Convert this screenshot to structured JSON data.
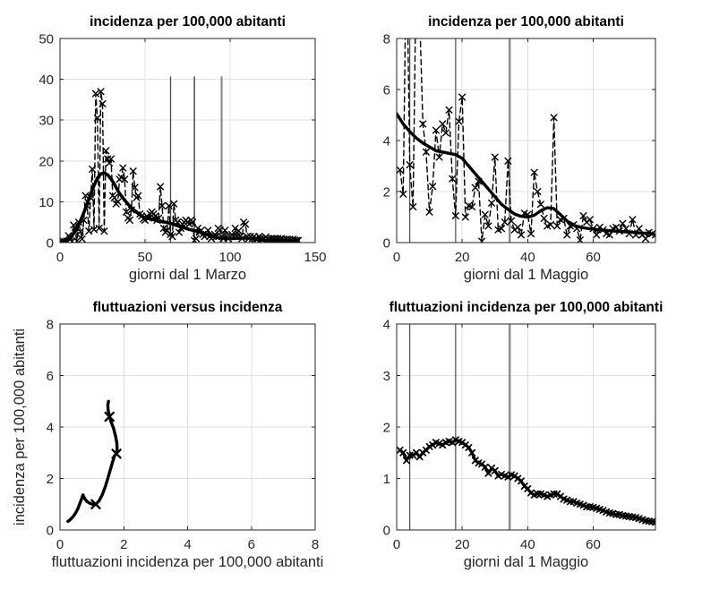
{
  "figure": {
    "background": "#ffffff",
    "description": "2x2 grid of grayscale epidemic-incidence plots, MATLAB style"
  },
  "colors": {
    "line": "#000000",
    "grid": "#e0e0e0",
    "axis": "#262626",
    "tick_label": "#262626",
    "background": "#ffffff"
  },
  "chart_data": [
    {
      "position": "top-left",
      "type": "line",
      "title": "incidenza per 100,000 abitanti",
      "xlabel": "giorni dal 1 Marzo",
      "ylabel": "",
      "xlim": [
        0,
        150
      ],
      "ylim": [
        0,
        50
      ],
      "xticks": [
        0,
        50,
        100,
        150
      ],
      "yticks": [
        0,
        10,
        20,
        30,
        40,
        50
      ],
      "grid": true,
      "event_lines": [
        {
          "x": 65,
          "y_top": 40.7,
          "width": 1.3,
          "color": "#4d4d4d"
        },
        {
          "x": 79,
          "y_top": 40.7,
          "width": 1.5,
          "color": "#4d4d4d"
        },
        {
          "x": 95,
          "y_top": 40.7,
          "width": 2.2,
          "color": "#8c8c8c"
        }
      ],
      "series": [
        {
          "name": "daily incidence (data)",
          "line": "dashed",
          "line_width": 1.4,
          "marker": "x",
          "marker_size": 3.3,
          "marker_width": 1.4,
          "x_range": [
            1,
            140,
            1
          ],
          "y": [
            0.2,
            0.3,
            0.2,
            0.4,
            1.7,
            0.8,
            0.3,
            4.3,
            2.4,
            0.4,
            5.0,
            2.7,
            0.9,
            5.5,
            11.5,
            9.0,
            2.8,
            11.0,
            18.0,
            3.2,
            36.5,
            30.5,
            3.5,
            37.0,
            34.0,
            2.8,
            22.5,
            20.5,
            19.5,
            20.5,
            11.5,
            11.0,
            9.5,
            10.0,
            15.5,
            16.0,
            18.3,
            15.5,
            7.5,
            6.0,
            5.5,
            8.0,
            17.5,
            13.5,
            11.0,
            11.5,
            7.0,
            6.5,
            5.8,
            5.5,
            6.5,
            6.0,
            7.0,
            7.5,
            7.0,
            6.5,
            5.5,
            6.0,
            13.7,
            9.0,
            3.5,
            2.5,
            3.0,
            9.0,
            2.0,
            1.5,
            9.5,
            5.5,
            5.0,
            2.5,
            3.5,
            4.5,
            5.0,
            5.5,
            5.0,
            4.5,
            5.5,
            5.0,
            0.5,
            1.0,
            3.5,
            2.5,
            3.0,
            2.0,
            1.5,
            2.0,
            3.0,
            1.5,
            1.0,
            1.5,
            2.0,
            1.5,
            3.5,
            3.1,
            1.5,
            1.0,
            3.0,
            1.5,
            1.0,
            1.5,
            2.0,
            1.5,
            3.5,
            1.5,
            2.9,
            1.5,
            1.0,
            5.0,
            4.5,
            1.5,
            1.0,
            1.5,
            1.0,
            1.5,
            1.0,
            0.8,
            1.5,
            1.0,
            0.8,
            1.0,
            1.4,
            1.0,
            0.8,
            1.0,
            0.8,
            1.0,
            0.8,
            1.0,
            0.8,
            1.0,
            0.8,
            0.6,
            0.8,
            0.6,
            0.8,
            0.6,
            0.8,
            0.6,
            0.5,
            0.5
          ]
        },
        {
          "name": "smoothed incidence",
          "line": "solid",
          "line_width": 3.6,
          "marker": null,
          "x_range": [
            0,
            140,
            2
          ],
          "y": [
            0.2,
            0.4,
            0.7,
            1.2,
            2.2,
            3.6,
            5.3,
            7.3,
            9.5,
            11.9,
            14.0,
            15.8,
            16.8,
            17.1,
            16.6,
            15.6,
            14.3,
            12.7,
            11.5,
            10.4,
            9.4,
            8.5,
            7.8,
            7.1,
            6.5,
            6.1,
            5.9,
            5.7,
            5.5,
            5.2,
            5.1,
            5.0,
            4.8,
            4.6,
            4.3,
            4.0,
            3.7,
            3.5,
            3.2,
            3.0,
            2.85,
            2.6,
            2.3,
            2.0,
            1.75,
            1.5,
            1.3,
            1.15,
            1.05,
            1.0,
            1.0,
            1.02,
            1.06,
            1.1,
            1.1,
            1.08,
            1.0,
            0.9,
            0.78,
            0.68,
            0.6,
            0.54,
            0.5,
            0.47,
            0.45,
            0.44,
            0.43,
            0.42,
            0.41,
            0.4,
            0.4
          ]
        }
      ]
    },
    {
      "position": "top-right",
      "type": "line",
      "title": "incidenza per 100,000 abitanti",
      "xlabel": "giorni dal 1 Maggio",
      "ylabel": "",
      "xlim": [
        0,
        79
      ],
      "ylim": [
        0,
        8
      ],
      "xticks": [
        0,
        20,
        40,
        60
      ],
      "yticks": [
        0,
        2,
        4,
        6,
        8
      ],
      "grid": true,
      "event_lines": [
        {
          "x": 4,
          "y_top": 8,
          "width": 1.2,
          "color": "#4d4d4d"
        },
        {
          "x": 18,
          "y_top": 8,
          "width": 1.2,
          "color": "#4d4d4d"
        },
        {
          "x": 34.5,
          "y_top": 8,
          "width": 2.4,
          "color": "#8c8c8c"
        }
      ],
      "series": [
        {
          "name": "daily incidence (data)",
          "line": "dashed",
          "line_width": 1.4,
          "marker": "x",
          "marker_size": 3.3,
          "marker_width": 1.4,
          "x_range": [
            1,
            79,
            1
          ],
          "y": [
            2.85,
            1.9,
            12,
            3.05,
            1.4,
            11,
            9,
            4.65,
            3.55,
            1.2,
            2.2,
            4.4,
            3.35,
            4.65,
            4.3,
            5.2,
            2.5,
            1.05,
            4.75,
            5.7,
            1.0,
            1.45,
            1.4,
            2.15,
            2.4,
            0.05,
            1.1,
            0.65,
            1.55,
            3.35,
            0.5,
            0.55,
            0.8,
            3.2,
            0.85,
            0.5,
            0.6,
            0.3,
            1.15,
            1.1,
            0.35,
            2.75,
            2.0,
            1.5,
            0.95,
            0.65,
            0.7,
            4.9,
            0.65,
            0.9,
            0.95,
            0.3,
            0.65,
            0.7,
            0.55,
            0.1,
            1.05,
            0.8,
            0.9,
            0.55,
            0.3,
            0.6,
            0.5,
            0.35,
            0.3,
            0.55,
            0.6,
            0.45,
            0.75,
            0.55,
            0.35,
            0.9,
            0.3,
            0.55,
            0.3,
            0.15,
            0.4,
            0.35,
            0.3
          ]
        },
        {
          "name": "smoothed incidence",
          "line": "solid",
          "line_width": 3.4,
          "marker": null,
          "x_range": [
            0,
            78,
            2
          ],
          "y": [
            5.05,
            4.65,
            4.35,
            4.1,
            3.9,
            3.75,
            3.6,
            3.55,
            3.5,
            3.45,
            3.3,
            3.0,
            2.7,
            2.4,
            2.1,
            1.8,
            1.5,
            1.3,
            1.12,
            1.03,
            1.0,
            1.07,
            1.25,
            1.37,
            1.33,
            1.1,
            0.85,
            0.68,
            0.6,
            0.56,
            0.53,
            0.5,
            0.48,
            0.46,
            0.44,
            0.42,
            0.4,
            0.38,
            0.36,
            0.34
          ]
        }
      ]
    },
    {
      "position": "bottom-left",
      "type": "line",
      "title": "fluttuazioni versus incidenza",
      "xlabel": "fluttuazioni incidenza per 100,000 abitanti",
      "ylabel": "incidenza per 100,000 abitanti",
      "xlim": [
        0,
        8
      ],
      "ylim": [
        0,
        8
      ],
      "xticks": [
        0,
        2,
        4,
        6,
        8
      ],
      "yticks": [
        0,
        2,
        4,
        6,
        8
      ],
      "grid": true,
      "event_lines": [],
      "series": [
        {
          "name": "phase trajectory",
          "line": "solid",
          "line_width": 3.4,
          "marker": null,
          "x": [
            0.25,
            0.3,
            0.36,
            0.43,
            0.5,
            0.57,
            0.63,
            0.68,
            0.72,
            0.78,
            0.85,
            0.93,
            1.02,
            1.12,
            1.22,
            1.32,
            1.42,
            1.5,
            1.58,
            1.65,
            1.71,
            1.77,
            1.79,
            1.78,
            1.74,
            1.68,
            1.6,
            1.55,
            1.51,
            1.5,
            1.52
          ],
          "y": [
            0.33,
            0.38,
            0.45,
            0.55,
            0.68,
            0.85,
            1.05,
            1.22,
            1.36,
            1.2,
            1.1,
            1.04,
            1.0,
            1.0,
            1.12,
            1.35,
            1.68,
            2.0,
            2.35,
            2.65,
            2.88,
            2.96,
            3.15,
            3.4,
            3.65,
            3.95,
            4.2,
            4.4,
            4.65,
            4.85,
            5.0
          ]
        },
        {
          "name": "event markers",
          "line": "none",
          "line_width": 0,
          "marker": "x",
          "marker_size": 4.5,
          "marker_width": 2.3,
          "x": [
            1.12,
            1.77,
            1.55
          ],
          "y": [
            1.0,
            2.96,
            4.4
          ]
        }
      ]
    },
    {
      "position": "bottom-right",
      "type": "line",
      "title": "fluttuazioni incidenza per 100,000 abitanti",
      "xlabel": "giorni dal 1 Maggio",
      "ylabel": "",
      "xlim": [
        0,
        79
      ],
      "ylim": [
        0,
        4
      ],
      "xticks": [
        0,
        20,
        40,
        60
      ],
      "yticks": [
        0,
        1,
        2,
        3,
        4
      ],
      "grid": true,
      "event_lines": [
        {
          "x": 4,
          "y_top": 4,
          "width": 1.2,
          "color": "#4d4d4d"
        },
        {
          "x": 18,
          "y_top": 4,
          "width": 1.2,
          "color": "#4d4d4d"
        },
        {
          "x": 34.5,
          "y_top": 4,
          "width": 2.4,
          "color": "#8c8c8c"
        }
      ],
      "series": [
        {
          "name": "incidence fluctuations",
          "line": "solid",
          "line_width": 3.2,
          "marker": "x",
          "marker_size": 3.1,
          "marker_width": 1.7,
          "x_range": [
            1,
            79,
            1
          ],
          "y": [
            1.55,
            1.5,
            1.35,
            1.45,
            1.45,
            1.5,
            1.42,
            1.5,
            1.55,
            1.62,
            1.65,
            1.7,
            1.68,
            1.65,
            1.7,
            1.72,
            1.7,
            1.75,
            1.72,
            1.7,
            1.65,
            1.6,
            1.5,
            1.35,
            1.3,
            1.28,
            1.22,
            1.1,
            1.2,
            1.15,
            1.05,
            1.08,
            1.05,
            1.03,
            1.07,
            1.05,
            1.0,
            0.95,
            0.85,
            0.8,
            0.72,
            0.68,
            0.7,
            0.7,
            0.68,
            0.65,
            0.68,
            0.7,
            0.7,
            0.65,
            0.6,
            0.58,
            0.55,
            0.55,
            0.52,
            0.5,
            0.48,
            0.45,
            0.45,
            0.44,
            0.42,
            0.4,
            0.38,
            0.35,
            0.33,
            0.32,
            0.3,
            0.3,
            0.28,
            0.27,
            0.26,
            0.25,
            0.24,
            0.22,
            0.2,
            0.18,
            0.17,
            0.16,
            0.15
          ]
        }
      ]
    }
  ]
}
